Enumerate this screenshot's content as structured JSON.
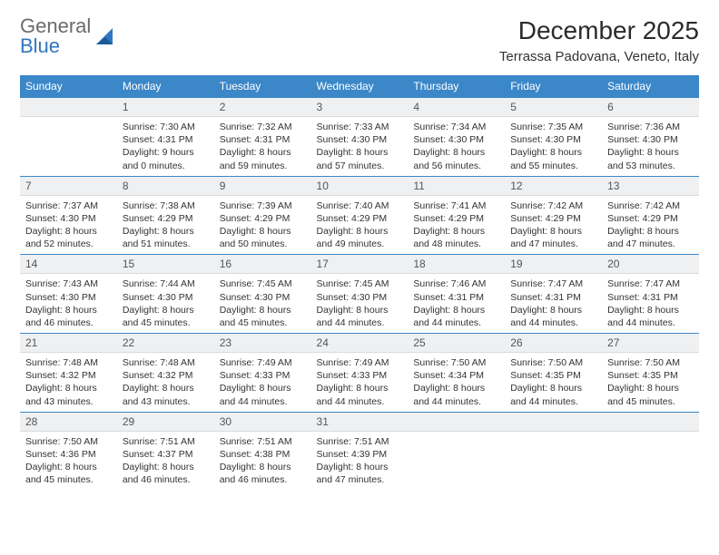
{
  "logo": {
    "text1": "General",
    "text2": "Blue",
    "color1": "#6b6b6b",
    "color2": "#2f77c0"
  },
  "title": "December 2025",
  "location": "Terrassa Padovana, Veneto, Italy",
  "header_bg": "#3b87c8",
  "daynum_bg": "#eef0f2",
  "border_color": "#3b87c8",
  "weekdays": [
    "Sunday",
    "Monday",
    "Tuesday",
    "Wednesday",
    "Thursday",
    "Friday",
    "Saturday"
  ],
  "weeks": [
    [
      {
        "n": "",
        "empty": true
      },
      {
        "n": "1",
        "sunrise": "7:30 AM",
        "sunset": "4:31 PM",
        "dl": "9 hours and 0 minutes."
      },
      {
        "n": "2",
        "sunrise": "7:32 AM",
        "sunset": "4:31 PM",
        "dl": "8 hours and 59 minutes."
      },
      {
        "n": "3",
        "sunrise": "7:33 AM",
        "sunset": "4:30 PM",
        "dl": "8 hours and 57 minutes."
      },
      {
        "n": "4",
        "sunrise": "7:34 AM",
        "sunset": "4:30 PM",
        "dl": "8 hours and 56 minutes."
      },
      {
        "n": "5",
        "sunrise": "7:35 AM",
        "sunset": "4:30 PM",
        "dl": "8 hours and 55 minutes."
      },
      {
        "n": "6",
        "sunrise": "7:36 AM",
        "sunset": "4:30 PM",
        "dl": "8 hours and 53 minutes."
      }
    ],
    [
      {
        "n": "7",
        "sunrise": "7:37 AM",
        "sunset": "4:30 PM",
        "dl": "8 hours and 52 minutes."
      },
      {
        "n": "8",
        "sunrise": "7:38 AM",
        "sunset": "4:29 PM",
        "dl": "8 hours and 51 minutes."
      },
      {
        "n": "9",
        "sunrise": "7:39 AM",
        "sunset": "4:29 PM",
        "dl": "8 hours and 50 minutes."
      },
      {
        "n": "10",
        "sunrise": "7:40 AM",
        "sunset": "4:29 PM",
        "dl": "8 hours and 49 minutes."
      },
      {
        "n": "11",
        "sunrise": "7:41 AM",
        "sunset": "4:29 PM",
        "dl": "8 hours and 48 minutes."
      },
      {
        "n": "12",
        "sunrise": "7:42 AM",
        "sunset": "4:29 PM",
        "dl": "8 hours and 47 minutes."
      },
      {
        "n": "13",
        "sunrise": "7:42 AM",
        "sunset": "4:29 PM",
        "dl": "8 hours and 47 minutes."
      }
    ],
    [
      {
        "n": "14",
        "sunrise": "7:43 AM",
        "sunset": "4:30 PM",
        "dl": "8 hours and 46 minutes."
      },
      {
        "n": "15",
        "sunrise": "7:44 AM",
        "sunset": "4:30 PM",
        "dl": "8 hours and 45 minutes."
      },
      {
        "n": "16",
        "sunrise": "7:45 AM",
        "sunset": "4:30 PM",
        "dl": "8 hours and 45 minutes."
      },
      {
        "n": "17",
        "sunrise": "7:45 AM",
        "sunset": "4:30 PM",
        "dl": "8 hours and 44 minutes."
      },
      {
        "n": "18",
        "sunrise": "7:46 AM",
        "sunset": "4:31 PM",
        "dl": "8 hours and 44 minutes."
      },
      {
        "n": "19",
        "sunrise": "7:47 AM",
        "sunset": "4:31 PM",
        "dl": "8 hours and 44 minutes."
      },
      {
        "n": "20",
        "sunrise": "7:47 AM",
        "sunset": "4:31 PM",
        "dl": "8 hours and 44 minutes."
      }
    ],
    [
      {
        "n": "21",
        "sunrise": "7:48 AM",
        "sunset": "4:32 PM",
        "dl": "8 hours and 43 minutes."
      },
      {
        "n": "22",
        "sunrise": "7:48 AM",
        "sunset": "4:32 PM",
        "dl": "8 hours and 43 minutes."
      },
      {
        "n": "23",
        "sunrise": "7:49 AM",
        "sunset": "4:33 PM",
        "dl": "8 hours and 44 minutes."
      },
      {
        "n": "24",
        "sunrise": "7:49 AM",
        "sunset": "4:33 PM",
        "dl": "8 hours and 44 minutes."
      },
      {
        "n": "25",
        "sunrise": "7:50 AM",
        "sunset": "4:34 PM",
        "dl": "8 hours and 44 minutes."
      },
      {
        "n": "26",
        "sunrise": "7:50 AM",
        "sunset": "4:35 PM",
        "dl": "8 hours and 44 minutes."
      },
      {
        "n": "27",
        "sunrise": "7:50 AM",
        "sunset": "4:35 PM",
        "dl": "8 hours and 45 minutes."
      }
    ],
    [
      {
        "n": "28",
        "sunrise": "7:50 AM",
        "sunset": "4:36 PM",
        "dl": "8 hours and 45 minutes."
      },
      {
        "n": "29",
        "sunrise": "7:51 AM",
        "sunset": "4:37 PM",
        "dl": "8 hours and 46 minutes."
      },
      {
        "n": "30",
        "sunrise": "7:51 AM",
        "sunset": "4:38 PM",
        "dl": "8 hours and 46 minutes."
      },
      {
        "n": "31",
        "sunrise": "7:51 AM",
        "sunset": "4:39 PM",
        "dl": "8 hours and 47 minutes."
      },
      {
        "n": "",
        "empty": true
      },
      {
        "n": "",
        "empty": true
      },
      {
        "n": "",
        "empty": true
      }
    ]
  ]
}
